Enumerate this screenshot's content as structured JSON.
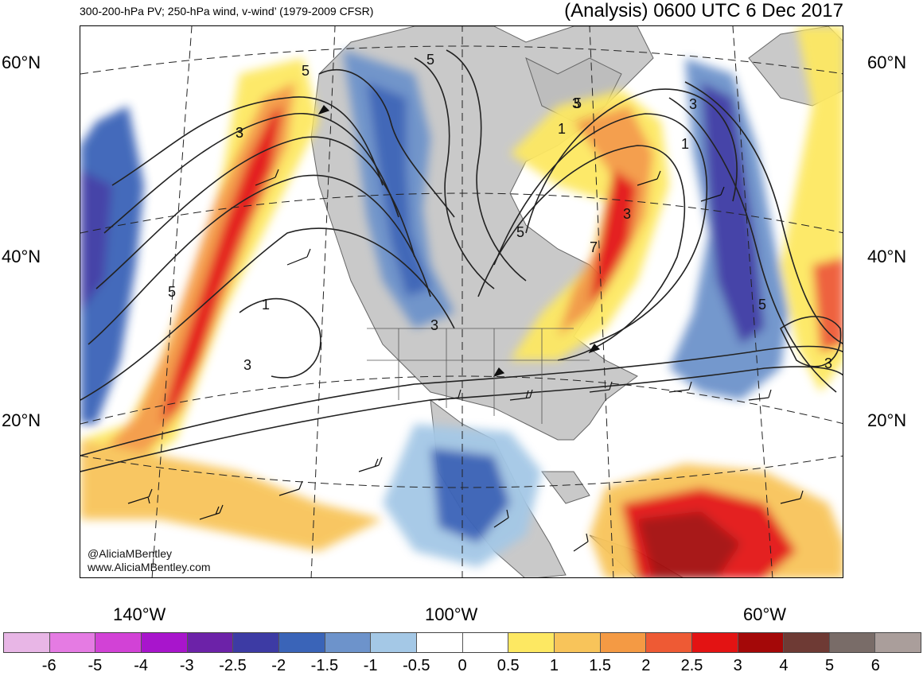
{
  "header": {
    "left": "300-200-hPa PV; 250-hPa wind, v-wind’ (1979-2009 CFSR)",
    "right": "(Analysis) 0600 UTC 6 Dec 2017"
  },
  "map": {
    "lat_labels": [
      "60°N",
      "40°N",
      "20°N"
    ],
    "lon_labels": [
      "140°W",
      "100°W",
      "60°W"
    ],
    "pv_contour_labels": [
      "5",
      "3",
      "3",
      "5",
      "5",
      "1",
      "3",
      "5",
      "3",
      "1",
      "3",
      "7",
      "3",
      "5",
      "3",
      "1",
      "5",
      "3"
    ]
  },
  "credits": {
    "handle": "@AliciaMBentley",
    "site": "www.AliciaMBentley.com"
  },
  "colorbar": {
    "colors": [
      "#e8b6e6",
      "#e57be3",
      "#d242d6",
      "#a815cc",
      "#6c22a8",
      "#3d3ba4",
      "#3a64b8",
      "#6d93cb",
      "#a4c8e6",
      "#ffffff",
      "#ffffff",
      "#fde862",
      "#f8c45a",
      "#f49a44",
      "#ee5a34",
      "#e31313",
      "#a40808",
      "#6e3a34",
      "#796c68",
      "#aa9e9b"
    ],
    "ticks": [
      "-6",
      "-5",
      "-4",
      "-3",
      "-2.5",
      "-2",
      "-1.5",
      "-1",
      "-0.5",
      "0",
      "0.5",
      "1",
      "1.5",
      "2",
      "2.5",
      "3",
      "4",
      "5",
      "6"
    ]
  }
}
